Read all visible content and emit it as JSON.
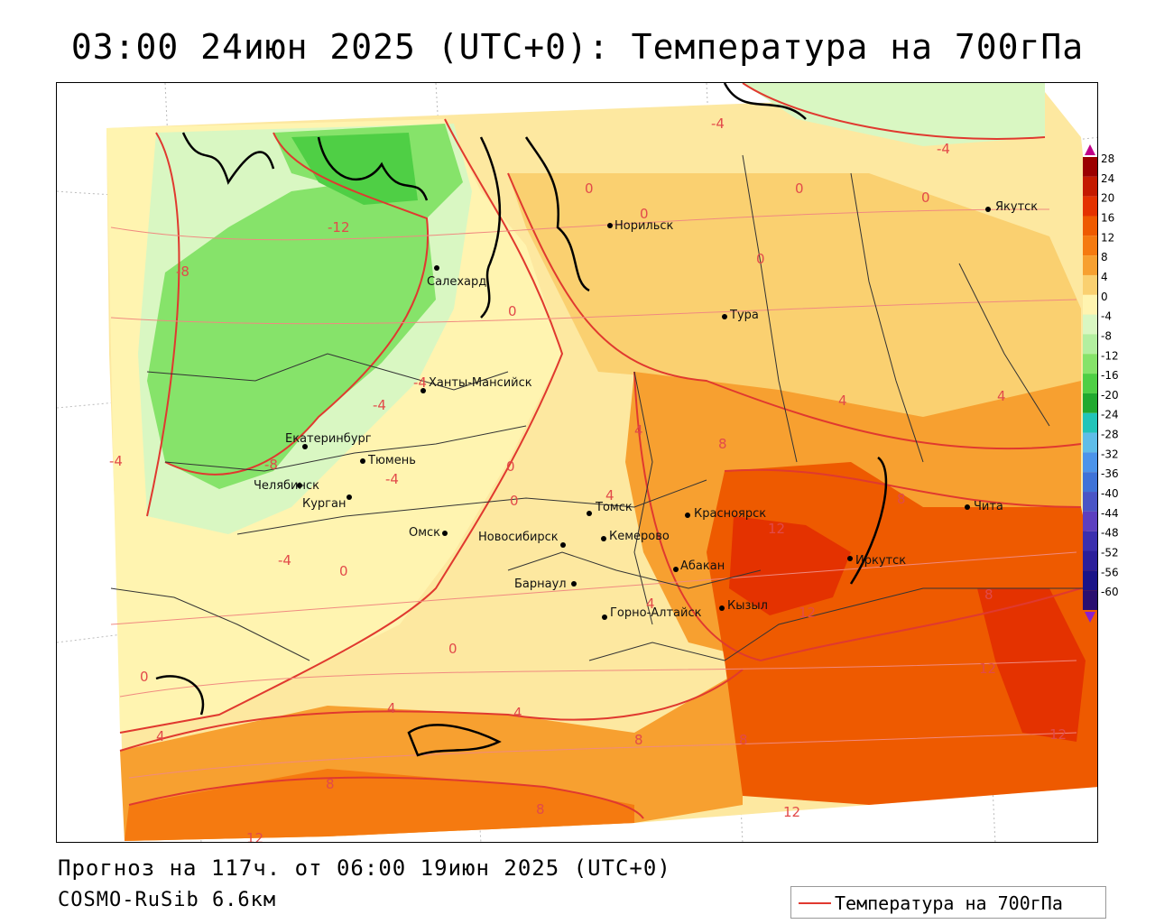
{
  "title": "03:00 24июн 2025 (UTC+0): Температура на 700гПа",
  "footer": {
    "forecast": "Прогноз на 117ч. от 06:00 19июн 2025 (UTC+0)",
    "model": "COSMO-RuSib 6.6км",
    "legend_label": "Температура на 700гПа"
  },
  "colors": {
    "contour": "#e0392f",
    "coast": "#000000",
    "border": "#333333"
  },
  "scale": {
    "labels": [
      "28",
      "24",
      "20",
      "16",
      "12",
      "8",
      "4",
      "0",
      "-4",
      "-8",
      "-12",
      "-16",
      "-20",
      "-24",
      "-28",
      "-32",
      "-36",
      "-40",
      "-44",
      "-48",
      "-52",
      "-56",
      "-60"
    ],
    "colors": [
      "#9b0000",
      "#c41a00",
      "#e43200",
      "#ee5a00",
      "#f57a10",
      "#f7a030",
      "#fad070",
      "#fff4b0",
      "#d9f7c2",
      "#b3efa0",
      "#86e36a",
      "#4fcf45",
      "#21a92f",
      "#22c4b8",
      "#5fbde8",
      "#4c94ea",
      "#3f73d8",
      "#4a55c6",
      "#5d3fc0",
      "#3b2fae",
      "#2b1f9b",
      "#1a1488",
      "#2a0f70"
    ]
  },
  "cities": [
    {
      "name": "Якутск"
    },
    {
      "name": "Норильск"
    },
    {
      "name": "Салехард"
    },
    {
      "name": "Тура"
    },
    {
      "name": "Ханты-Мансийск"
    },
    {
      "name": "Екатеринбург"
    },
    {
      "name": "Тюмень"
    },
    {
      "name": "Челябинск"
    },
    {
      "name": "Курган"
    },
    {
      "name": "Омск"
    },
    {
      "name": "Новосибирск"
    },
    {
      "name": "Томск"
    },
    {
      "name": "Кемерово"
    },
    {
      "name": "Красноярск"
    },
    {
      "name": "Абакан"
    },
    {
      "name": "Барнаул"
    },
    {
      "name": "Горно-Алтайск"
    },
    {
      "name": "Кызыл"
    },
    {
      "name": "Иркутск"
    },
    {
      "name": "Чита"
    }
  ],
  "contour_labels": [
    "-4",
    "-4",
    "0",
    "0",
    "0",
    "-12",
    "-8",
    "0",
    "0",
    "0",
    "-4",
    "-4",
    "-4",
    "-8",
    "-4",
    "-4",
    "4",
    "4",
    "4",
    "8",
    "0",
    "0",
    "4",
    "12",
    "8",
    "8",
    "12",
    "0",
    "0",
    "4",
    "4",
    "4",
    "8",
    "8",
    "12",
    "12",
    "8",
    "12",
    "12",
    "8",
    "0",
    "4"
  ]
}
